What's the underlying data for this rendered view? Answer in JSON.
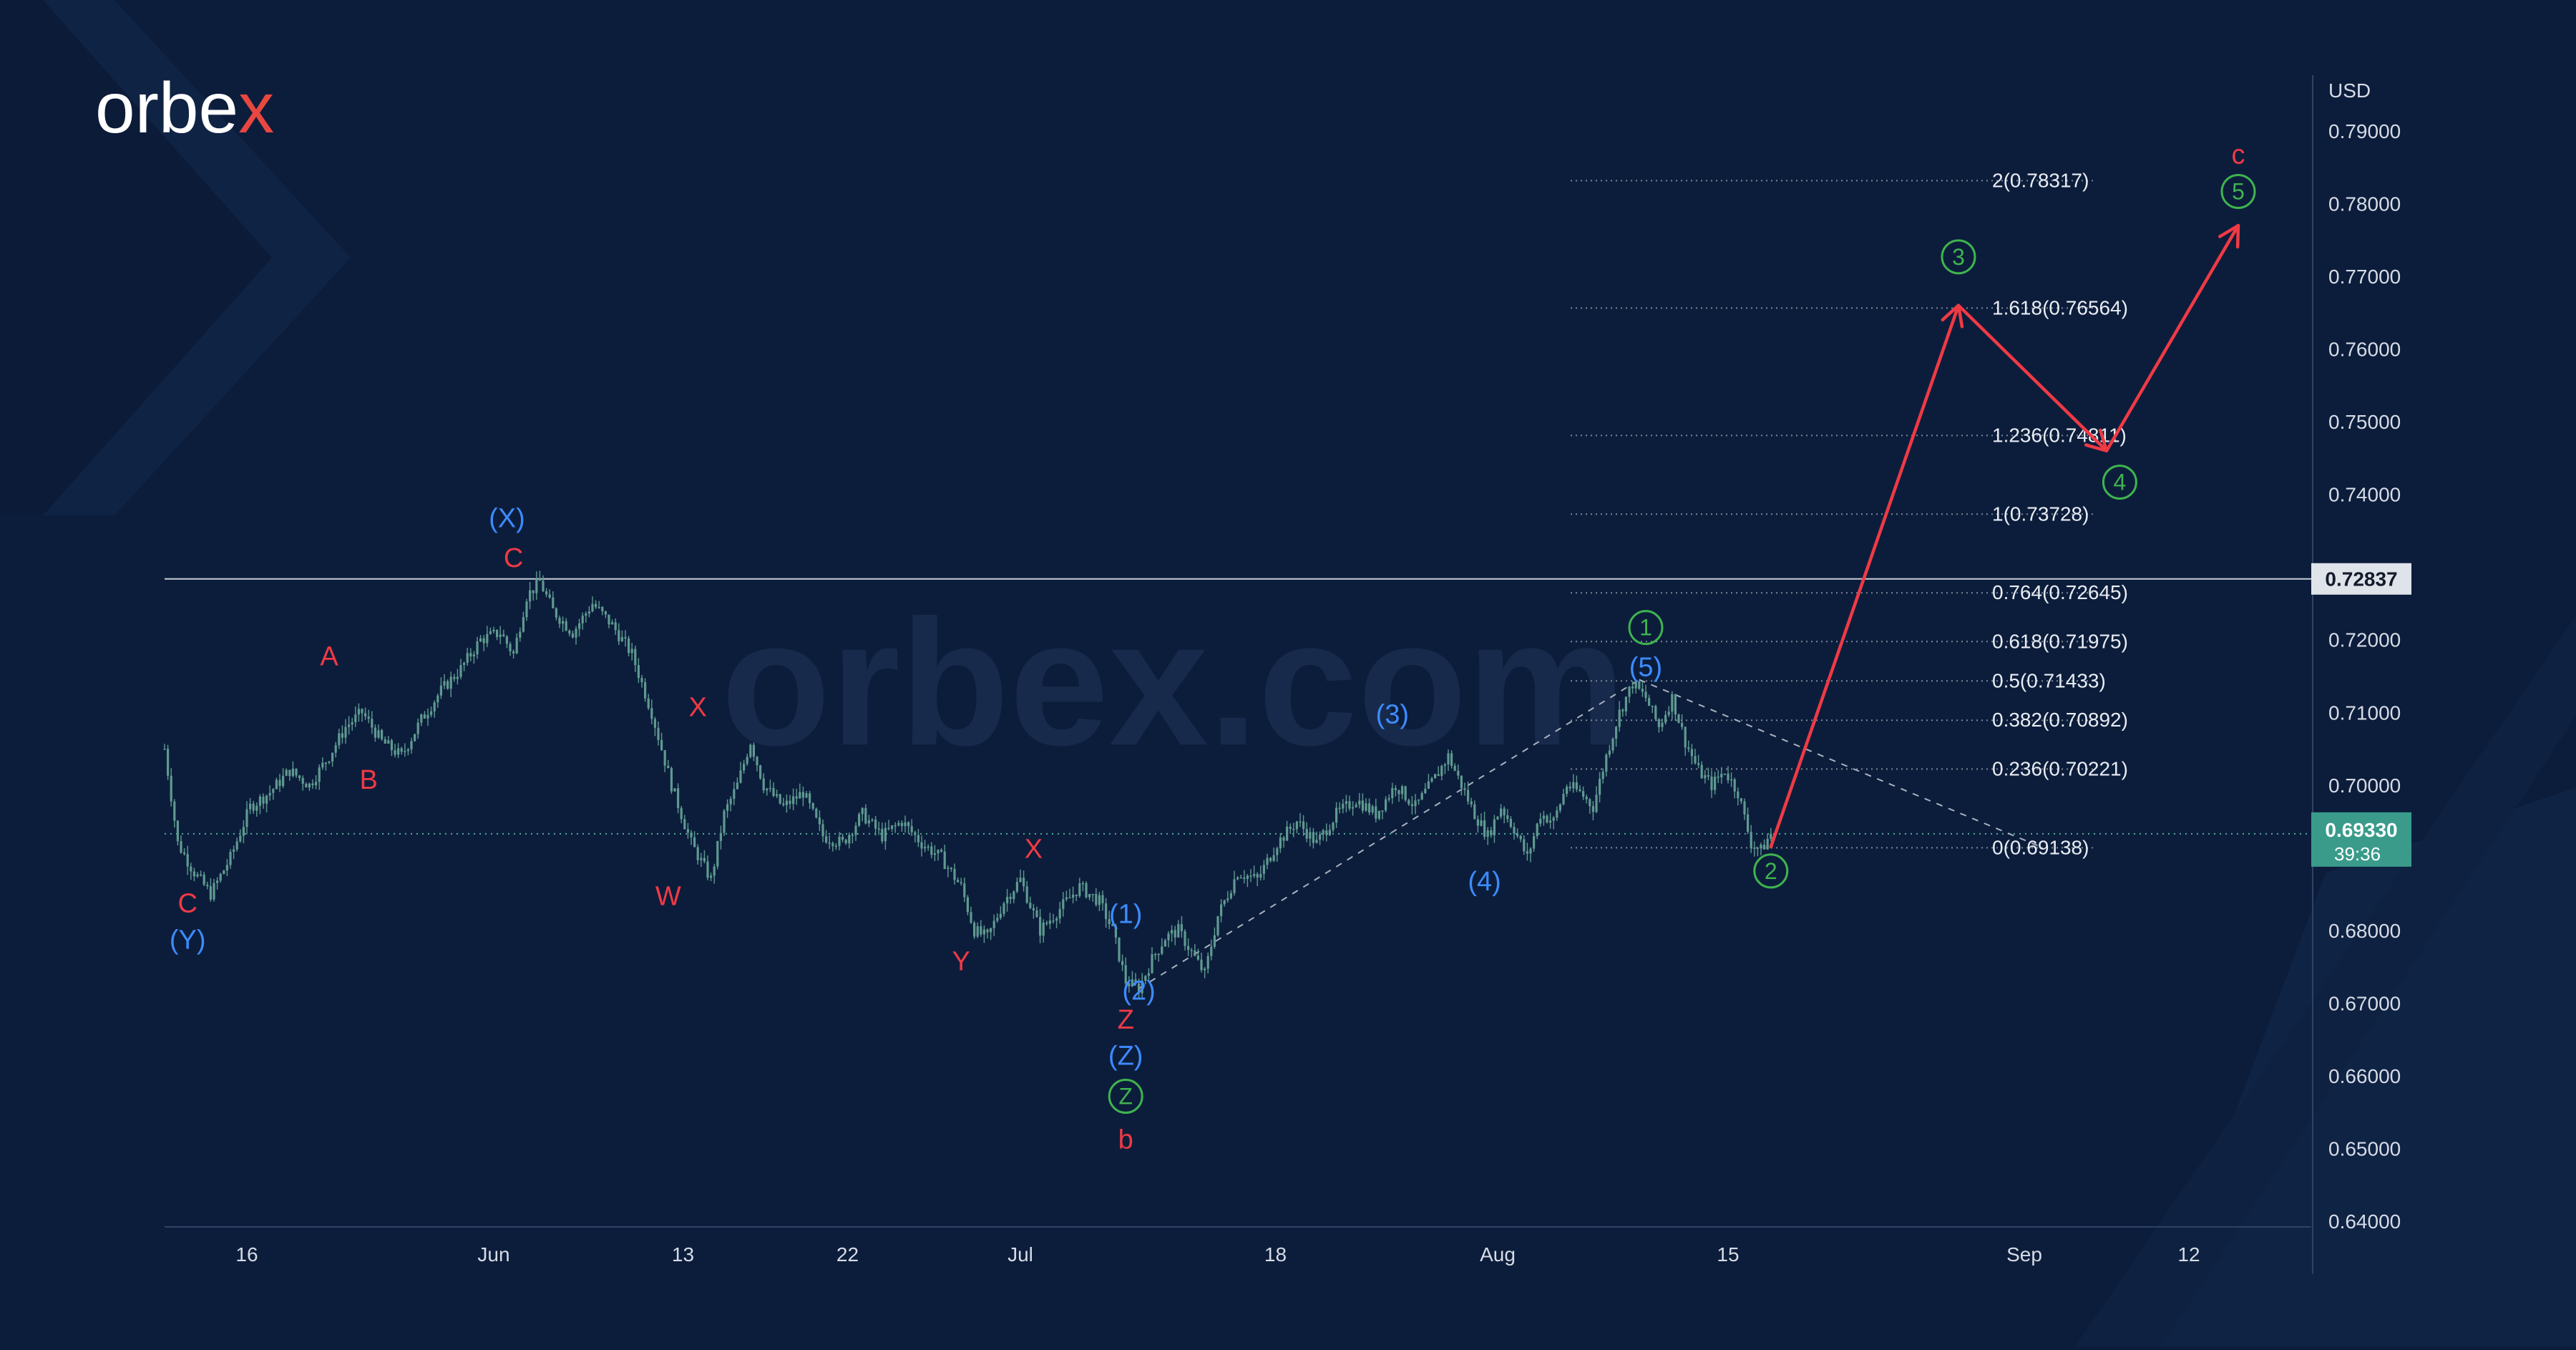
{
  "brand": {
    "name": "orbex",
    "watermark": "orbex.com"
  },
  "colors": {
    "background": "#0c1d3b",
    "axis_text": "#d6dbe6",
    "price_line": "#4fae9d",
    "candle": "#5f9a90",
    "wave_red": "#ef3a45",
    "wave_blue": "#3d8bff",
    "wave_green": "#3fb34f",
    "fib_text": "#e8ecf3",
    "fib_line": "#7c8696",
    "arrow": "#ef3a45"
  },
  "chart_data": {
    "type": "line",
    "instrument_currency": "USD",
    "ylim": [
      0.64,
      0.79
    ],
    "y_ticks": [
      "0.79000",
      "0.78000",
      "0.77000",
      "0.76000",
      "0.75000",
      "0.74000",
      "0.72000",
      "0.71000",
      "0.70000",
      "0.68000",
      "0.67000",
      "0.66000",
      "0.65000",
      "0.64000"
    ],
    "x_ticks": [
      "16",
      "Jun",
      "13",
      "22",
      "Jul",
      "18",
      "Aug",
      "15",
      "Sep",
      "12"
    ],
    "horizontal_level": {
      "value": 0.72837,
      "label": "0.72837"
    },
    "current_price": {
      "value": 0.6933,
      "label": "0.69330",
      "timer": "39:36"
    },
    "price_path": [
      [
        0,
        0.705
      ],
      [
        4,
        0.692
      ],
      [
        9,
        0.688
      ],
      [
        14,
        0.685
      ],
      [
        20,
        0.69
      ],
      [
        26,
        0.697
      ],
      [
        32,
        0.699
      ],
      [
        38,
        0.702
      ],
      [
        44,
        0.7
      ],
      [
        50,
        0.704
      ],
      [
        55,
        0.708
      ],
      [
        60,
        0.71
      ],
      [
        66,
        0.706
      ],
      [
        72,
        0.704
      ],
      [
        78,
        0.709
      ],
      [
        84,
        0.713
      ],
      [
        90,
        0.716
      ],
      [
        96,
        0.72
      ],
      [
        102,
        0.721
      ],
      [
        106,
        0.718
      ],
      [
        110,
        0.726
      ],
      [
        114,
        0.728
      ],
      [
        118,
        0.724
      ],
      [
        124,
        0.721
      ],
      [
        130,
        0.725
      ],
      [
        136,
        0.722
      ],
      [
        142,
        0.718
      ],
      [
        148,
        0.71
      ],
      [
        154,
        0.7
      ],
      [
        160,
        0.692
      ],
      [
        166,
        0.687
      ],
      [
        170,
        0.696
      ],
      [
        174,
        0.7
      ],
      [
        178,
        0.706
      ],
      [
        182,
        0.7
      ],
      [
        188,
        0.697
      ],
      [
        194,
        0.699
      ],
      [
        200,
        0.693
      ],
      [
        206,
        0.692
      ],
      [
        212,
        0.696
      ],
      [
        218,
        0.693
      ],
      [
        224,
        0.695
      ],
      [
        230,
        0.692
      ],
      [
        236,
        0.69
      ],
      [
        242,
        0.686
      ],
      [
        246,
        0.68
      ],
      [
        250,
        0.679
      ],
      [
        255,
        0.684
      ],
      [
        260,
        0.687
      ],
      [
        266,
        0.68
      ],
      [
        272,
        0.683
      ],
      [
        278,
        0.686
      ],
      [
        284,
        0.684
      ],
      [
        288,
        0.68
      ],
      [
        292,
        0.673
      ],
      [
        296,
        0.672
      ],
      [
        300,
        0.676
      ],
      [
        304,
        0.679
      ],
      [
        308,
        0.68
      ],
      [
        312,
        0.677
      ],
      [
        316,
        0.674
      ],
      [
        320,
        0.682
      ],
      [
        326,
        0.688
      ],
      [
        332,
        0.687
      ],
      [
        338,
        0.692
      ],
      [
        344,
        0.695
      ],
      [
        350,
        0.692
      ],
      [
        356,
        0.696
      ],
      [
        362,
        0.698
      ],
      [
        368,
        0.696
      ],
      [
        374,
        0.7
      ],
      [
        380,
        0.697
      ],
      [
        386,
        0.701
      ],
      [
        390,
        0.704
      ],
      [
        394,
        0.7
      ],
      [
        398,
        0.696
      ],
      [
        402,
        0.693
      ],
      [
        406,
        0.697
      ],
      [
        410,
        0.694
      ],
      [
        414,
        0.69
      ],
      [
        418,
        0.696
      ],
      [
        422,
        0.695
      ],
      [
        426,
        0.7
      ],
      [
        430,
        0.699
      ],
      [
        434,
        0.697
      ],
      [
        438,
        0.704
      ],
      [
        442,
        0.71
      ],
      [
        446,
        0.714
      ],
      [
        450,
        0.712
      ],
      [
        454,
        0.708
      ],
      [
        458,
        0.712
      ],
      [
        462,
        0.706
      ],
      [
        466,
        0.702
      ],
      [
        470,
        0.7
      ],
      [
        474,
        0.702
      ],
      [
        478,
        0.699
      ],
      [
        482,
        0.692
      ],
      [
        485,
        0.691
      ],
      [
        488,
        0.6933
      ]
    ],
    "fibonacci_levels": [
      {
        "ratio": "2",
        "value": 0.78317,
        "label": "2(0.78317)"
      },
      {
        "ratio": "1.618",
        "value": 0.76564,
        "label": "1.618(0.76564)"
      },
      {
        "ratio": "1.236",
        "value": 0.74811,
        "label": "1.236(0.74811)"
      },
      {
        "ratio": "1",
        "value": 0.73728,
        "label": "1(0.73728)"
      },
      {
        "ratio": "0.764",
        "value": 0.72645,
        "label": "0.764(0.72645)"
      },
      {
        "ratio": "0.618",
        "value": 0.71975,
        "label": "0.618(0.71975)"
      },
      {
        "ratio": "0.5",
        "value": 0.71433,
        "label": "0.5(0.71433)"
      },
      {
        "ratio": "0.382",
        "value": 0.70892,
        "label": "0.382(0.70892)"
      },
      {
        "ratio": "0.236",
        "value": 0.70221,
        "label": "0.236(0.70221)"
      },
      {
        "ratio": "0",
        "value": 0.69138,
        "label": "0(0.69138)"
      }
    ],
    "forecast_path": [
      [
        488,
        0.6915
      ],
      [
        545,
        0.766
      ],
      [
        590,
        0.746
      ],
      [
        630,
        0.777
      ]
    ],
    "trend_lines": [
      {
        "style": "dashed",
        "points": [
          [
            296,
            0.672
          ],
          [
            448,
            0.7145
          ]
        ]
      },
      {
        "style": "dashed",
        "points": [
          [
            448,
            0.7145
          ],
          [
            570,
            0.6915
          ]
        ]
      }
    ],
    "wave_labels": [
      {
        "text": "C",
        "color": "red",
        "circled": false,
        "x": 7,
        "y": 0.6825
      },
      {
        "text": "(Y)",
        "color": "blue",
        "circled": false,
        "x": 7,
        "y": 0.6775
      },
      {
        "text": "A",
        "color": "red",
        "circled": false,
        "x": 50,
        "y": 0.7165
      },
      {
        "text": "B",
        "color": "red",
        "circled": false,
        "x": 62,
        "y": 0.6995
      },
      {
        "text": "(X)",
        "color": "blue",
        "circled": false,
        "x": 104,
        "y": 0.7355
      },
      {
        "text": "C",
        "color": "red",
        "circled": false,
        "x": 106,
        "y": 0.73
      },
      {
        "text": "X",
        "color": "red",
        "circled": false,
        "x": 162,
        "y": 0.7095
      },
      {
        "text": "W",
        "color": "red",
        "circled": false,
        "x": 153,
        "y": 0.6835
      },
      {
        "text": "X",
        "color": "red",
        "circled": false,
        "x": 264,
        "y": 0.69
      },
      {
        "text": "Y",
        "color": "red",
        "circled": false,
        "x": 242,
        "y": 0.6745
      },
      {
        "text": "(1)",
        "color": "blue",
        "circled": false,
        "x": 292,
        "y": 0.681
      },
      {
        "text": "(2)",
        "color": "blue",
        "circled": false,
        "x": 296,
        "y": 0.6705
      },
      {
        "text": "Z",
        "color": "red",
        "circled": false,
        "x": 292,
        "y": 0.6665
      },
      {
        "text": "(Z)",
        "color": "blue",
        "circled": false,
        "x": 292,
        "y": 0.6615
      },
      {
        "text": "Z",
        "color": "green",
        "circled": true,
        "x": 292,
        "y": 0.656
      },
      {
        "text": "b",
        "color": "red",
        "circled": false,
        "x": 292,
        "y": 0.65
      },
      {
        "text": "(3)",
        "color": "blue",
        "circled": false,
        "x": 373,
        "y": 0.7085
      },
      {
        "text": "(4)",
        "color": "blue",
        "circled": false,
        "x": 401,
        "y": 0.6855
      },
      {
        "text": "(5)",
        "color": "blue",
        "circled": false,
        "x": 450,
        "y": 0.715
      },
      {
        "text": "1",
        "color": "green",
        "circled": true,
        "x": 450,
        "y": 0.7205
      },
      {
        "text": "2",
        "color": "green",
        "circled": true,
        "x": 488,
        "y": 0.687
      },
      {
        "text": "3",
        "color": "green",
        "circled": true,
        "x": 545,
        "y": 0.7715
      },
      {
        "text": "4",
        "color": "green",
        "circled": true,
        "x": 594,
        "y": 0.7405
      },
      {
        "text": "5",
        "color": "green",
        "circled": true,
        "x": 630,
        "y": 0.7805
      },
      {
        "text": "c",
        "color": "red",
        "circled": false,
        "x": 630,
        "y": 0.7855
      }
    ]
  }
}
